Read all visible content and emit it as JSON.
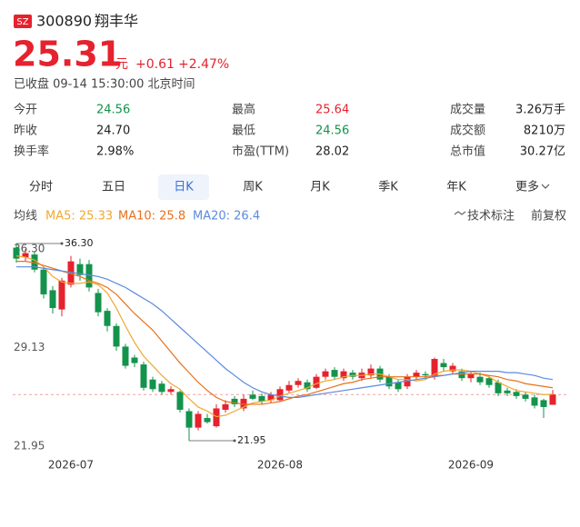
{
  "header": {
    "badge": "SZ",
    "code": "300890",
    "name": "翔丰华",
    "price": "25.31",
    "unit": "元",
    "change": "+0.61",
    "change_pct": "+2.47%",
    "status": "已收盘 09-14 15:30:00 北京时间"
  },
  "stats": [
    [
      {
        "label": "今开",
        "value": "24.56",
        "color": "#13934b"
      },
      {
        "label": "最高",
        "value": "25.64",
        "color": "#e5222d"
      },
      {
        "label": "成交量",
        "value": "3.26万手"
      }
    ],
    [
      {
        "label": "昨收",
        "value": "24.70"
      },
      {
        "label": "最低",
        "value": "24.56",
        "color": "#13934b"
      },
      {
        "label": "成交额",
        "value": "8210万"
      }
    ],
    [
      {
        "label": "换手率",
        "value": "2.98%"
      },
      {
        "label": "市盈(TTM)",
        "value": "28.02"
      },
      {
        "label": "总市值",
        "value": "30.27亿"
      }
    ]
  ],
  "tabs": [
    "分时",
    "五日",
    "日K",
    "周K",
    "月K",
    "季K",
    "年K",
    "更多"
  ],
  "active_tab": 2,
  "indicator_label": "均线",
  "tools": [
    "技术标注",
    "前复权"
  ],
  "chart_data": {
    "type": "candlestick",
    "up_color": "#e5222d",
    "down_color": "#13934b",
    "open": [
      36.0,
      35.3,
      35.5,
      34.4,
      32.9,
      31.5,
      33.3,
      34.8,
      34.8,
      32.7,
      31.4,
      30.3,
      28.8,
      28.0,
      27.5,
      26.4,
      26.1,
      25.5,
      25.5,
      24.1,
      22.9,
      23.6,
      23.0,
      24.2,
      25.0,
      24.3,
      25.3,
      25.2,
      24.9,
      24.9,
      25.6,
      26.0,
      26.2,
      25.8,
      26.6,
      27.1,
      26.5,
      26.9,
      26.5,
      26.7,
      27.2,
      26.6,
      26.2,
      25.9,
      26.6,
      26.8,
      26.6,
      27.6,
      27.0,
      27.0,
      26.5,
      26.6,
      26.5,
      26.2,
      25.6,
      25.5,
      25.3,
      25.1,
      24.9,
      24.56
    ],
    "high": [
      36.3,
      35.9,
      35.7,
      34.6,
      33.2,
      33.8,
      35.4,
      35.2,
      35.1,
      33.0,
      31.6,
      30.5,
      29.0,
      28.2,
      27.7,
      26.6,
      26.3,
      25.9,
      25.6,
      24.3,
      24.1,
      23.9,
      24.6,
      24.9,
      25.2,
      25.3,
      25.6,
      25.4,
      25.5,
      25.9,
      26.3,
      26.5,
      26.4,
      26.8,
      27.2,
      27.3,
      27.2,
      27.1,
      27.2,
      27.5,
      27.4,
      26.8,
      26.4,
      26.8,
      27.1,
      27.0,
      28.0,
      27.9,
      27.6,
      27.2,
      27.0,
      26.9,
      26.7,
      26.4,
      25.8,
      25.7,
      25.5,
      25.3,
      25.0,
      25.64
    ],
    "low": [
      34.9,
      35.0,
      34.2,
      32.3,
      31.2,
      31.0,
      33.1,
      33.6,
      32.8,
      31.0,
      29.9,
      28.5,
      27.2,
      27.3,
      25.6,
      25.5,
      25.3,
      25.3,
      24.0,
      21.95,
      22.7,
      23.2,
      22.9,
      24.0,
      24.4,
      24.1,
      24.9,
      24.6,
      24.7,
      24.8,
      25.4,
      25.8,
      25.5,
      25.7,
      26.4,
      26.4,
      26.3,
      26.4,
      26.3,
      26.5,
      26.2,
      25.7,
      25.5,
      25.7,
      26.4,
      26.4,
      26.4,
      27.0,
      26.8,
      26.3,
      26.2,
      26.0,
      25.8,
      25.2,
      25.2,
      25.0,
      24.8,
      24.3,
      23.6,
      24.56
    ],
    "close": [
      35.2,
      35.6,
      34.4,
      32.6,
      31.6,
      33.6,
      35.0,
      34.0,
      33.1,
      31.3,
      30.3,
      28.8,
      27.4,
      27.6,
      25.8,
      25.7,
      25.5,
      25.7,
      24.2,
      22.9,
      23.9,
      23.3,
      24.3,
      24.6,
      24.6,
      25.0,
      25.0,
      24.8,
      25.3,
      25.7,
      26.0,
      26.3,
      25.7,
      26.6,
      27.0,
      26.6,
      27.0,
      26.6,
      26.9,
      27.2,
      26.4,
      25.9,
      25.7,
      26.6,
      26.9,
      26.7,
      27.9,
      27.3,
      27.4,
      26.5,
      26.8,
      26.2,
      26.0,
      25.4,
      25.4,
      25.2,
      25.0,
      24.5,
      24.4,
      25.31
    ],
    "series": [
      {
        "name": "MA5",
        "legend_label": "MA5: 25.33",
        "color": "#f0a830",
        "values": [
          35.4,
          35.3,
          35.1,
          34.6,
          33.9,
          33.5,
          33.4,
          33.4,
          33.5,
          33.3,
          32.7,
          31.6,
          30.3,
          29.1,
          28.1,
          27.4,
          26.7,
          26.1,
          25.7,
          25.0,
          24.4,
          24.1,
          23.7,
          23.8,
          24.1,
          24.4,
          24.7,
          24.8,
          24.9,
          25.2,
          25.4,
          25.6,
          25.8,
          26.1,
          26.3,
          26.4,
          26.6,
          26.7,
          26.7,
          26.8,
          26.8,
          26.6,
          26.4,
          26.4,
          26.3,
          26.4,
          26.8,
          27.0,
          27.1,
          27.1,
          27.0,
          26.8,
          26.6,
          26.2,
          25.9,
          25.6,
          25.5,
          25.4,
          25.3,
          25.33
        ]
      },
      {
        "name": "MA10",
        "legend_label": "MA10: 25.8",
        "color": "#e8701a",
        "values": [
          35.0,
          35.0,
          34.9,
          34.7,
          34.5,
          34.3,
          34.1,
          33.9,
          33.6,
          33.4,
          33.1,
          32.6,
          31.9,
          31.2,
          30.6,
          30.0,
          29.2,
          28.4,
          27.6,
          26.9,
          26.2,
          25.6,
          25.1,
          24.8,
          24.7,
          24.6,
          24.6,
          24.6,
          24.7,
          24.8,
          25.0,
          25.2,
          25.3,
          25.5,
          25.7,
          25.9,
          26.1,
          26.2,
          26.4,
          26.5,
          26.6,
          26.6,
          26.6,
          26.6,
          26.6,
          26.6,
          26.7,
          26.7,
          26.8,
          26.8,
          26.8,
          26.8,
          26.7,
          26.6,
          26.4,
          26.3,
          26.1,
          26.0,
          25.9,
          25.8
        ]
      },
      {
        "name": "MA20",
        "legend_label": "MA20: 26.4",
        "color": "#5a8ae0",
        "values": [
          34.6,
          34.6,
          34.6,
          34.5,
          34.4,
          34.3,
          34.2,
          34.1,
          34.0,
          33.9,
          33.7,
          33.4,
          33.1,
          32.7,
          32.3,
          31.9,
          31.4,
          30.8,
          30.2,
          29.6,
          29.0,
          28.4,
          27.8,
          27.2,
          26.7,
          26.2,
          25.8,
          25.5,
          25.3,
          25.2,
          25.1,
          25.1,
          25.2,
          25.3,
          25.4,
          25.5,
          25.6,
          25.7,
          25.8,
          25.9,
          26.0,
          26.1,
          26.2,
          26.3,
          26.4,
          26.5,
          26.6,
          26.7,
          26.8,
          26.9,
          27.0,
          27.0,
          27.0,
          27.0,
          26.9,
          26.9,
          26.8,
          26.7,
          26.5,
          26.4
        ]
      }
    ],
    "ref_line": 25.31,
    "annotations": [
      {
        "at": 0,
        "value": 36.3,
        "label": "36.30"
      },
      {
        "at": 19,
        "value": 21.95,
        "label": "21.95"
      }
    ],
    "ylim": [
      21.95,
      36.3
    ],
    "yticks": [
      {
        "value": 36.3,
        "label": "36.30"
      },
      29.13,
      21.95
    ],
    "xticks": [
      {
        "value": 6,
        "label": "2026-07"
      },
      {
        "value": 29,
        "label": "2026-08"
      },
      {
        "value": 50,
        "label": "2026-09"
      }
    ]
  }
}
